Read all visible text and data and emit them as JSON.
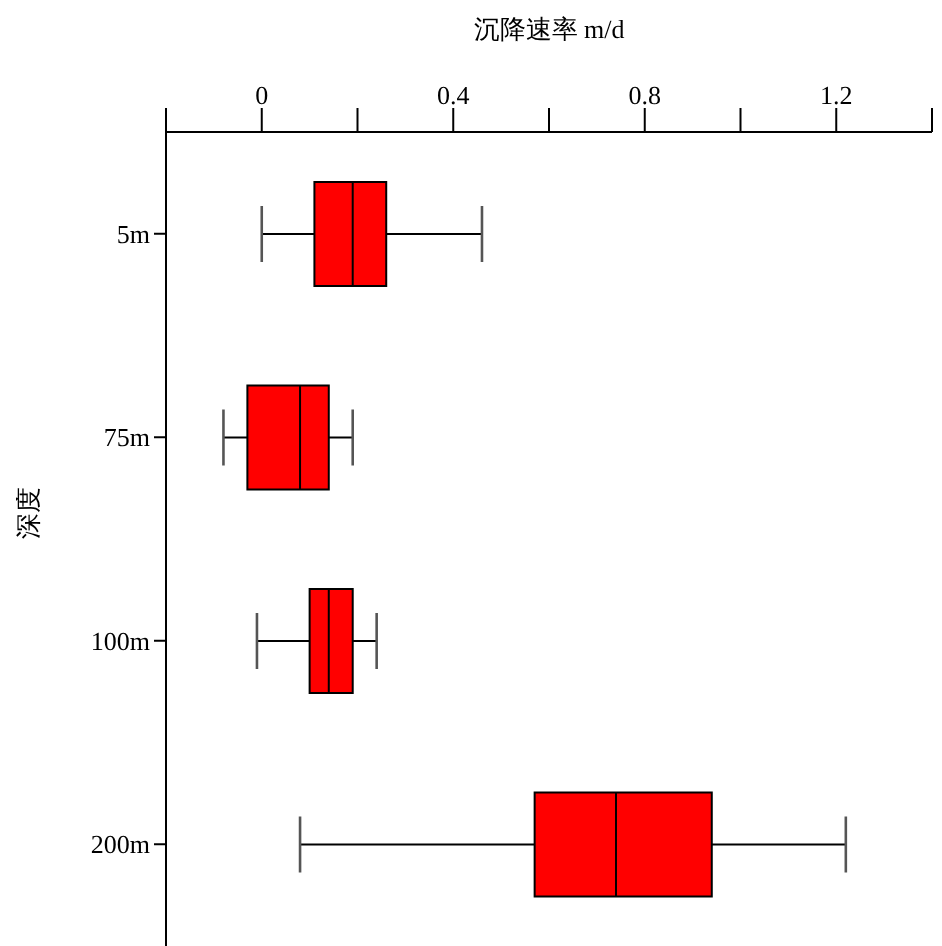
{
  "chart_data": {
    "type": "box",
    "orientation": "horizontal",
    "xlabel": "沉降速率 m/d",
    "ylabel": "深度",
    "categories": [
      "5m",
      "75m",
      "100m",
      "200m"
    ],
    "color": "#ff0000",
    "boxes": [
      {
        "low": 0.0,
        "q1": 0.11,
        "median": 0.19,
        "q3": 0.26,
        "high": 0.46
      },
      {
        "low": -0.08,
        "q1": -0.03,
        "median": 0.08,
        "q3": 0.14,
        "high": 0.19
      },
      {
        "low": -0.01,
        "q1": 0.1,
        "median": 0.14,
        "q3": 0.19,
        "high": 0.24
      },
      {
        "low": 0.08,
        "q1": 0.57,
        "median": 0.74,
        "q3": 0.94,
        "high": 1.22
      }
    ],
    "xlim": [
      -0.2,
      1.4
    ],
    "xticks": [
      {
        "value": -0.2,
        "label": null
      },
      0,
      {
        "value": 0.2,
        "label": null
      },
      0.4,
      {
        "value": 0.6,
        "label": null
      },
      0.8,
      {
        "value": 1.0,
        "label": null
      },
      1.2,
      {
        "value": 1.4,
        "label": null
      }
    ]
  }
}
